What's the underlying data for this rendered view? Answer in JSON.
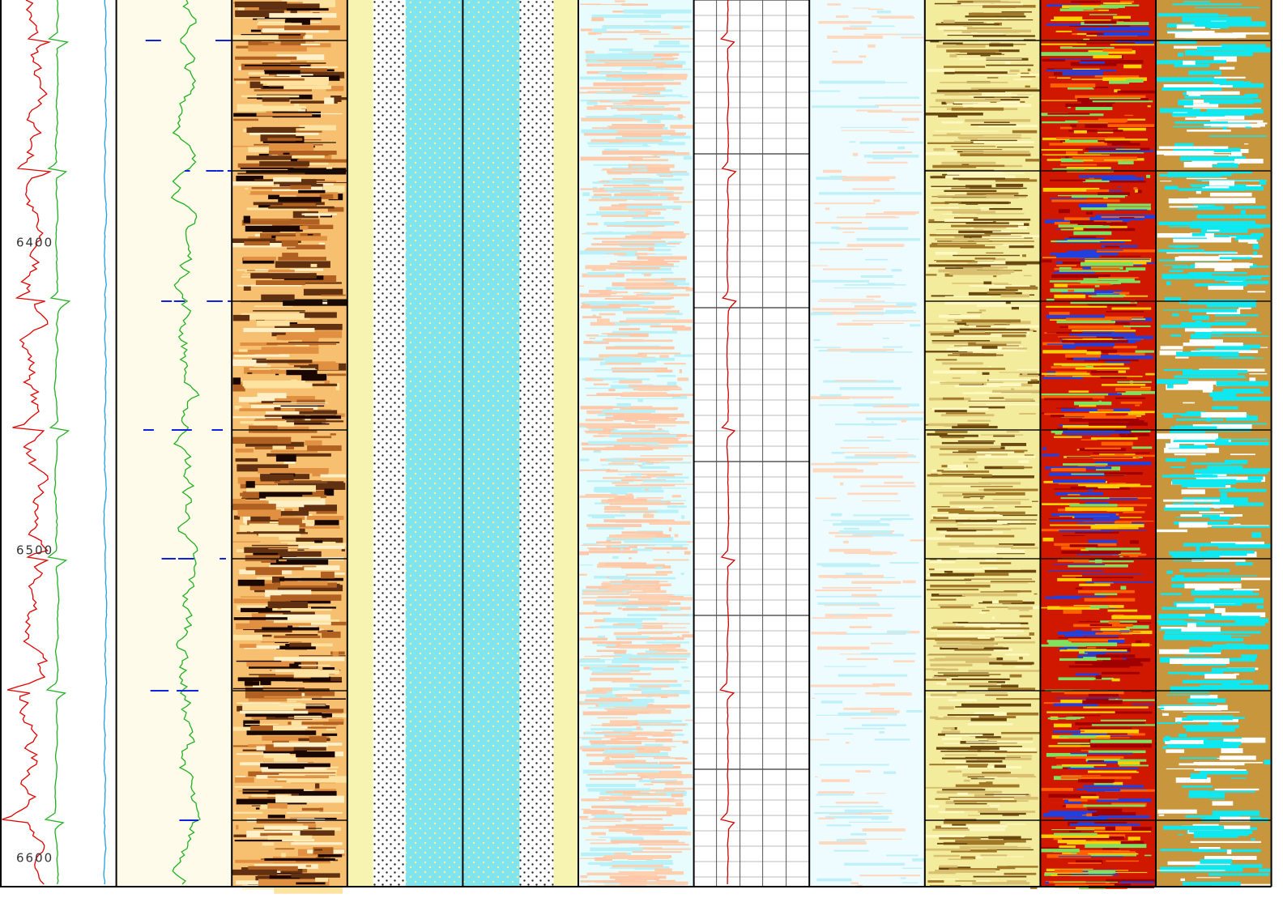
{
  "depth_labels": [
    "6400",
    "6500",
    "6600"
  ]
}
